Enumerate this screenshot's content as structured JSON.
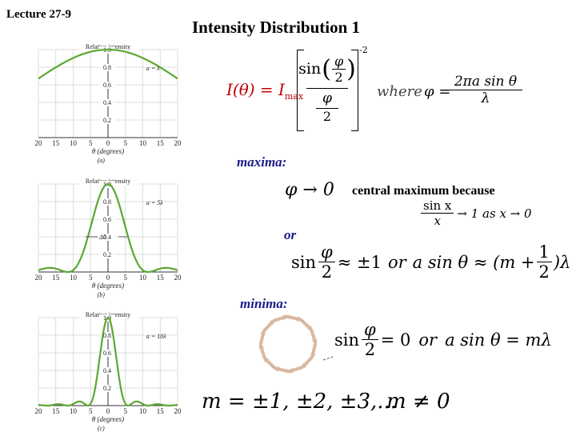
{
  "header": {
    "lecture": "Lecture 27-9",
    "title": "Intensity Distribution 1"
  },
  "formula": {
    "lhs": "I(θ) = I",
    "lhs_sub": "max",
    "sin": "sin",
    "phi": "φ",
    "two": "2",
    "power": "-2",
    "where": "where",
    "phi_eq": "φ =",
    "phi_num": "2πa sin θ",
    "phi_den": "λ"
  },
  "maxima": {
    "label": "maxima:",
    "expr": "φ → 0",
    "note": "central maximum because",
    "limit_num": "sin x",
    "limit_den": "x",
    "limit_rest": "→ 1 as x → 0",
    "or": "or",
    "sin": "sin",
    "phi": "φ",
    "two": "2",
    "approx": "≈ ±1",
    "or2": "or",
    "asin": "a sin θ ≈ (m +",
    "one": "1",
    "tail": ")λ"
  },
  "minima": {
    "label": "minima:",
    "sin": "sin",
    "phi": "φ",
    "two": "2",
    "eq0": "= 0",
    "or": "or",
    "asin": "a sin θ = mλ",
    "m_values": "m = ±1, ±2, ±3,...",
    "m_neq": "m ≠ 0"
  },
  "plots": [
    {
      "panel_label": "(a)",
      "ylabel": "Relative intensity",
      "yticks": [
        "1.0",
        "0.8",
        "0.6",
        "0.4",
        "0.2"
      ],
      "xticks": [
        "20",
        "15",
        "10",
        "5",
        "0",
        "5",
        "10",
        "15",
        "20"
      ],
      "xlabel": "θ (degrees)",
      "annotation": "a = λ",
      "width_label": ""
    },
    {
      "panel_label": "(b)",
      "ylabel": "Relative intensity",
      "yticks": [
        "1.0",
        "0.8",
        "0.6",
        "0.4",
        "0.2"
      ],
      "xticks": [
        "20",
        "15",
        "10",
        "5",
        "0",
        "5",
        "10",
        "15",
        "20"
      ],
      "xlabel": "θ (degrees)",
      "annotation": "a = 5λ",
      "width_label": "Δθ"
    },
    {
      "panel_label": "(c)",
      "ylabel": "Relative intensity",
      "yticks": [
        "1.0",
        "0.8",
        "0.6",
        "0.4",
        "0.2"
      ],
      "xticks": [
        "20",
        "15",
        "10",
        "5",
        "0",
        "5",
        "10",
        "15",
        "20"
      ],
      "xlabel": "θ (degrees)",
      "annotation": "a = 10λ",
      "width_label": ""
    }
  ],
  "chart_data": [
    {
      "type": "line",
      "xlabel": "θ (degrees)",
      "ylabel": "Relative intensity",
      "xlim": [
        -20,
        20
      ],
      "ylim": [
        0,
        1.0
      ],
      "curve_color": "#5aa832",
      "slit_width_over_lambda": 1
    },
    {
      "type": "line",
      "xlabel": "θ (degrees)",
      "ylabel": "Relative intensity",
      "xlim": [
        -20,
        20
      ],
      "ylim": [
        0,
        1.0
      ],
      "curve_color": "#5aa832",
      "slit_width_over_lambda": 5
    },
    {
      "type": "line",
      "xlabel": "θ (degrees)",
      "ylabel": "Relative intensity",
      "xlim": [
        -20,
        20
      ],
      "ylim": [
        0,
        1.0
      ],
      "curve_color": "#5aa832",
      "slit_width_over_lambda": 10
    }
  ],
  "colors": {
    "curve": "#5aa832",
    "formula_red": "#c00000",
    "label_navy": "#1b1b8a",
    "grid": "#d0d0d0",
    "phasor": "#d9b8a0"
  }
}
